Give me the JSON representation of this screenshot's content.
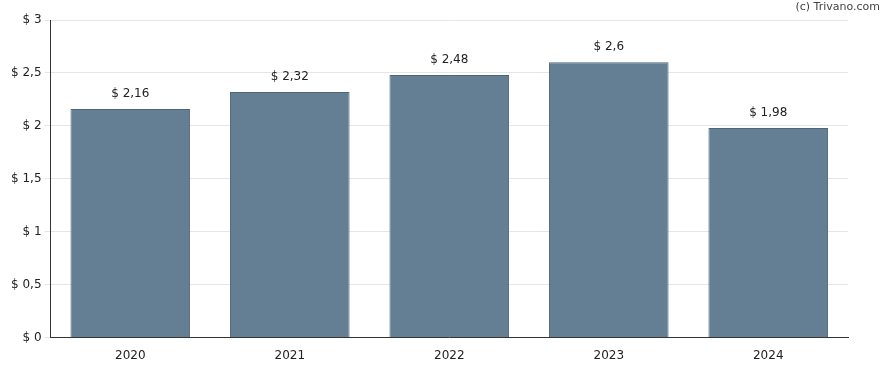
{
  "chart_data": {
    "type": "bar",
    "annotation": "(c) Trivano.com",
    "categories": [
      "2020",
      "2021",
      "2022",
      "2023",
      "2024"
    ],
    "values": [
      2.16,
      2.32,
      2.48,
      2.6,
      1.98
    ],
    "value_labels": [
      "$ 2,16",
      "$ 2,32",
      "$ 2,48",
      "$ 2,6",
      "$ 1,98"
    ],
    "data_labels": true,
    "color": "#647f93",
    "ylim": [
      0,
      3
    ],
    "yticks": [
      {
        "value": 0,
        "label": "$ 0"
      },
      {
        "value": 0.5,
        "label": "$ 0,5"
      },
      {
        "value": 1,
        "label": "$ 1"
      },
      {
        "value": 1.5,
        "label": "$ 1,5"
      },
      {
        "value": 2,
        "label": "$ 2"
      },
      {
        "value": 2.5,
        "label": "$ 2,5"
      },
      {
        "value": 3,
        "label": "$ 3"
      }
    ],
    "grid": true
  }
}
